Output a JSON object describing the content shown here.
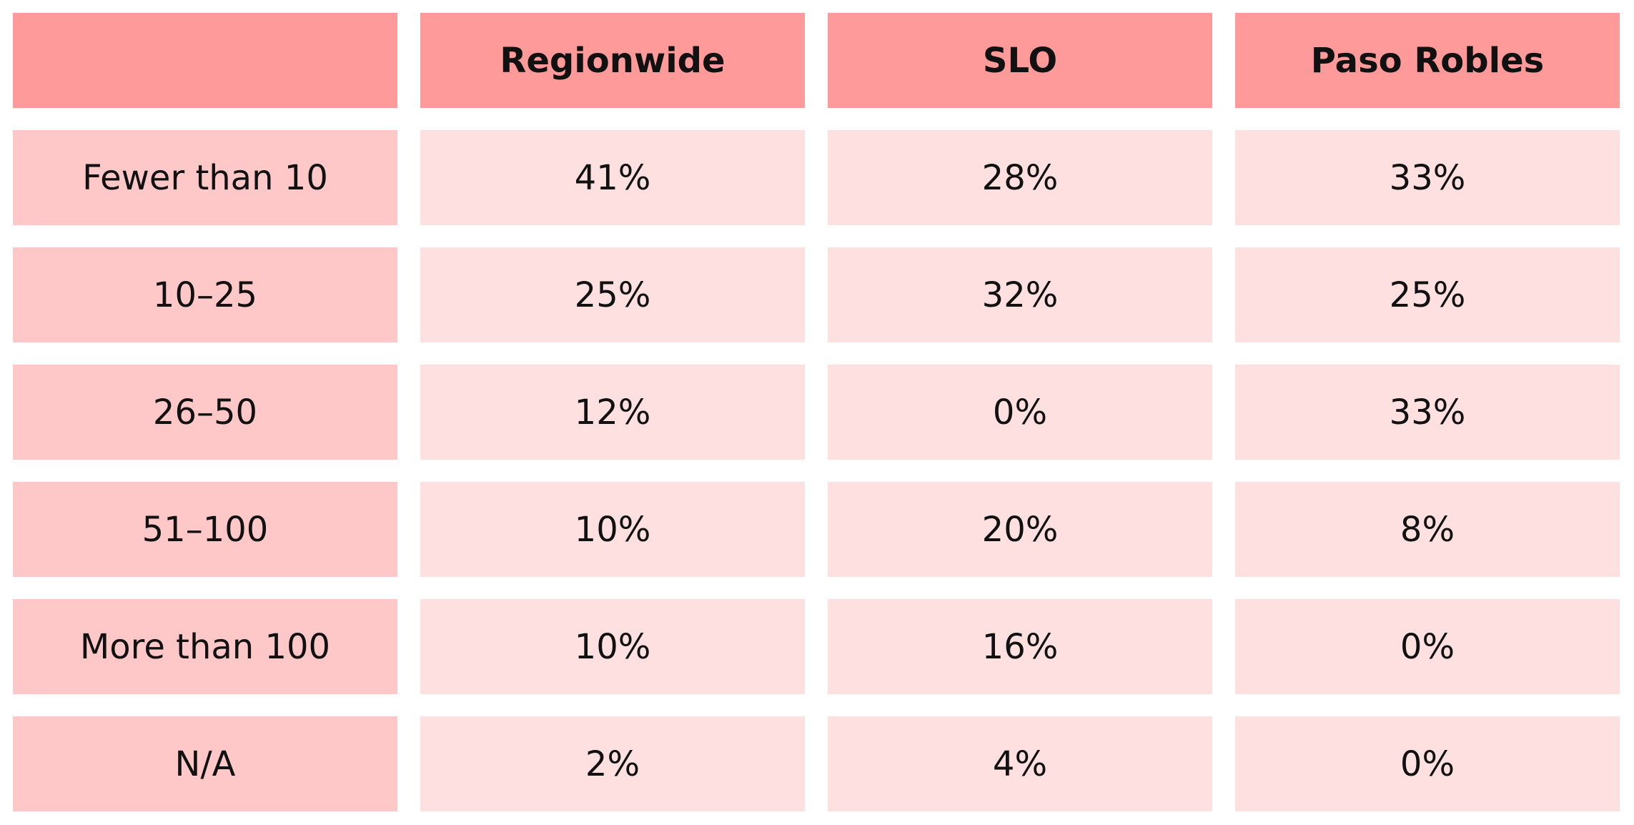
{
  "colors": {
    "header_bg": "#fe9a9a",
    "label_bg": "#fec8c8",
    "cell_bg": "#fee0e0",
    "text": "#111111"
  },
  "chart_data": {
    "type": "table",
    "columns": [
      "",
      "Regionwide",
      "SLO",
      "Paso Robles"
    ],
    "rows": [
      {
        "label": "Fewer than 10",
        "values": [
          "41%",
          "28%",
          "33%"
        ]
      },
      {
        "label": "10–25",
        "values": [
          "25%",
          "32%",
          "25%"
        ]
      },
      {
        "label": "26–50",
        "values": [
          "12%",
          "0%",
          "33%"
        ]
      },
      {
        "label": "51–100",
        "values": [
          "10%",
          "20%",
          "8%"
        ]
      },
      {
        "label": "More than 100",
        "values": [
          "10%",
          "16%",
          "0%"
        ]
      },
      {
        "label": "N/A",
        "values": [
          "2%",
          "4%",
          "0%"
        ]
      }
    ]
  }
}
